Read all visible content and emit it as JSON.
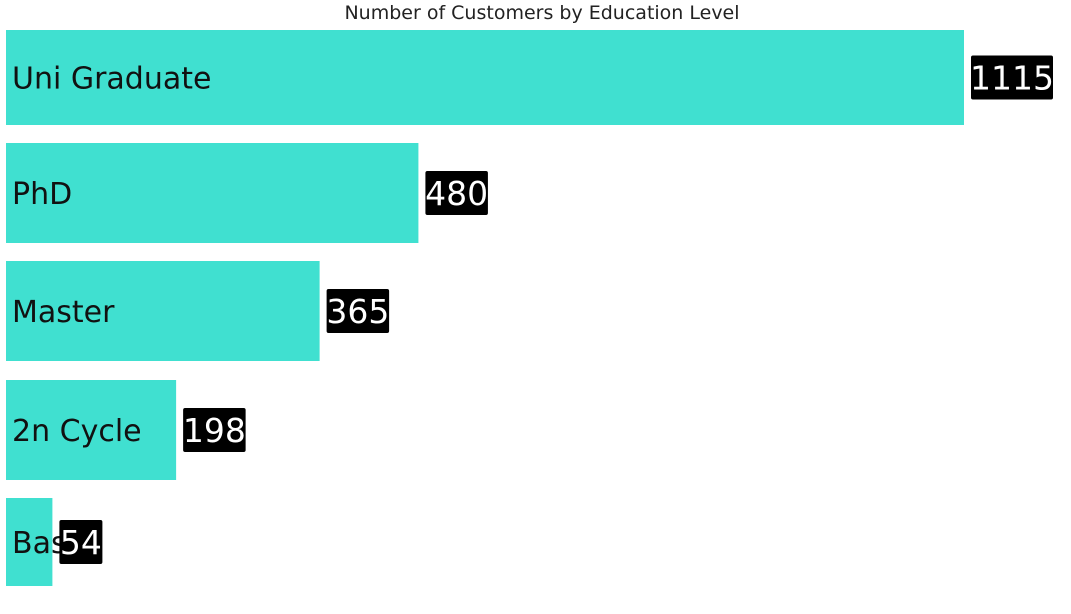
{
  "chart_data": {
    "type": "bar",
    "orientation": "horizontal",
    "title": "Number of Customers by Education Level",
    "categories": [
      "Uni Graduate",
      "PhD",
      "Master",
      "2n Cycle",
      "Basic"
    ],
    "category_labels_shown": [
      "Uni Graduate",
      "PhD",
      "Master",
      "2n Cycle",
      "Bas"
    ],
    "values": [
      1115,
      480,
      365,
      198,
      54
    ],
    "xlim": [
      0,
      1115
    ],
    "grid": false,
    "legend": "none",
    "colors": {
      "bar": "#40E0D0",
      "value_label_bg": "#000000",
      "value_label_text": "#ffffff"
    }
  }
}
